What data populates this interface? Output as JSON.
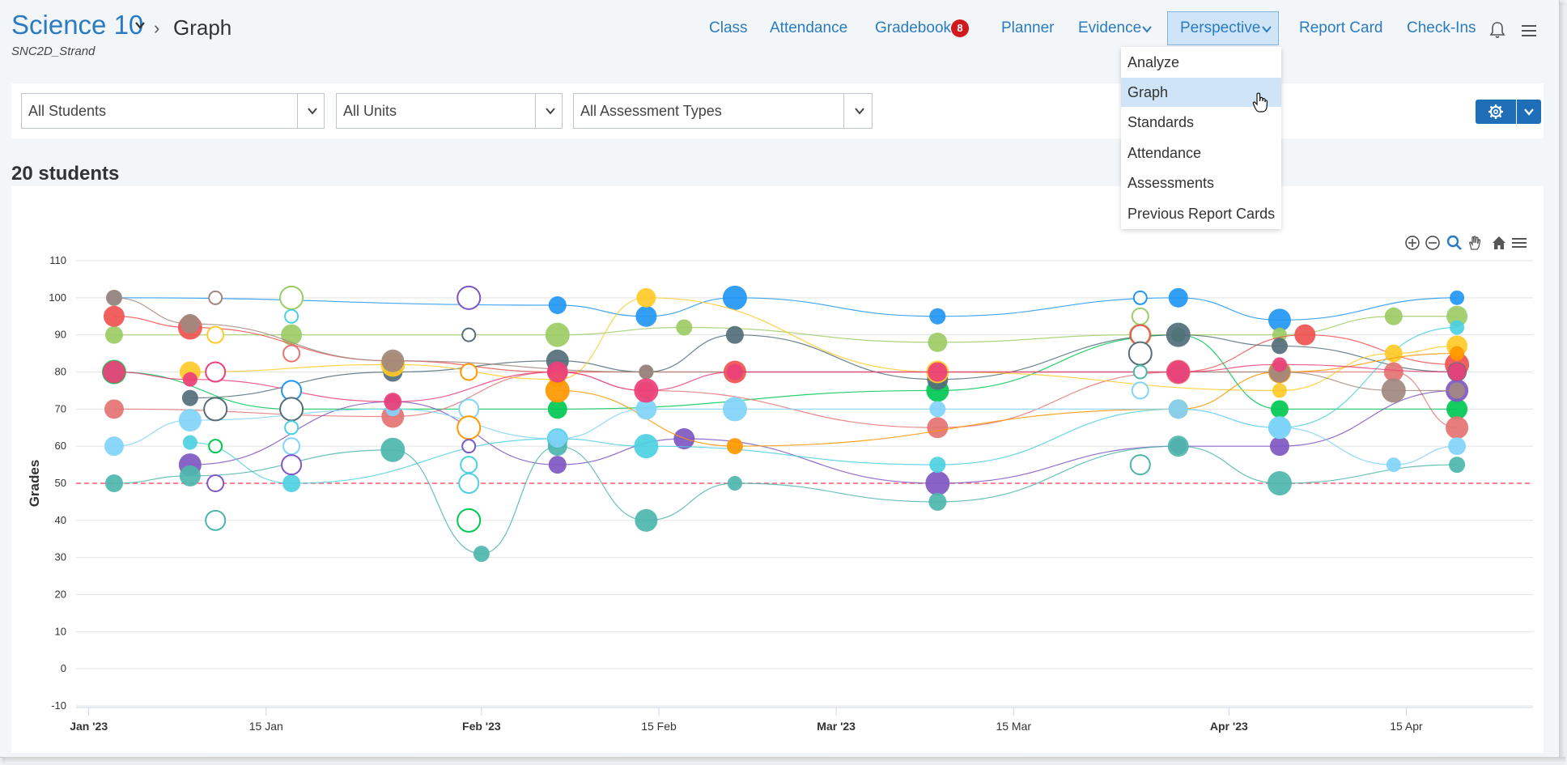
{
  "header": {
    "course_title": "Science 10",
    "breadcrumb_sep": "›",
    "page": "Graph",
    "subtitle": "SNC2D_Strand"
  },
  "nav": {
    "items": [
      {
        "label": "Class"
      },
      {
        "label": "Attendance"
      },
      {
        "label": "Gradebook",
        "badge": "8"
      },
      {
        "label": "Planner"
      },
      {
        "label": "Evidence"
      },
      {
        "label": "Perspective"
      },
      {
        "label": "Report Card"
      },
      {
        "label": "Check-Ins"
      }
    ],
    "active": "Perspective"
  },
  "perspective_menu": {
    "items": [
      "Analyze",
      "Graph",
      "Standards",
      "Attendance",
      "Assessments",
      "Previous Report Cards"
    ],
    "selected": "Graph"
  },
  "filters": {
    "students": "All Students",
    "units": "All Units",
    "types": "All Assessment Types"
  },
  "summary": {
    "count_label": "20 students"
  },
  "colors": {
    "accent": "#2a7bc0",
    "badge": "#d2191c",
    "threshold_line": "#ff5a7a"
  },
  "chart_data": {
    "type": "scatter",
    "ylabel": "Grades",
    "ylim": [
      -10,
      110
    ],
    "yticks": [
      110,
      100,
      90,
      80,
      70,
      60,
      50,
      40,
      30,
      20,
      10,
      0,
      -10
    ],
    "x_ticks": [
      {
        "label": "Jan '23",
        "date": "2023-01-01",
        "bold": true
      },
      {
        "label": "15 Jan",
        "date": "2023-01-15",
        "bold": false
      },
      {
        "label": "Feb '23",
        "date": "2023-02-01",
        "bold": true
      },
      {
        "label": "15 Feb",
        "date": "2023-02-15",
        "bold": false
      },
      {
        "label": "Mar '23",
        "date": "2023-03-01",
        "bold": true
      },
      {
        "label": "15 Mar",
        "date": "2023-03-15",
        "bold": false
      },
      {
        "label": "Apr '23",
        "date": "2023-04-01",
        "bold": true
      },
      {
        "label": "15 Apr",
        "date": "2023-04-15",
        "bold": false
      }
    ],
    "xlim": [
      "2022-12-31",
      "2023-04-25"
    ],
    "threshold": 50,
    "grid": true,
    "series": [
      {
        "color": "#2196f3",
        "points": [
          [
            "2023-01-03",
            100
          ],
          [
            "2023-02-07",
            98
          ],
          [
            "2023-02-14",
            95
          ],
          [
            "2023-02-21",
            100
          ],
          [
            "2023-03-09",
            95
          ],
          [
            "2023-03-28",
            100
          ],
          [
            "2023-04-05",
            94
          ],
          [
            "2023-04-19",
            100
          ]
        ]
      },
      {
        "color": "#9ccc65",
        "points": [
          [
            "2023-01-03",
            90
          ],
          [
            "2023-01-17",
            90
          ],
          [
            "2023-02-07",
            90
          ],
          [
            "2023-02-17",
            92
          ],
          [
            "2023-03-09",
            88
          ],
          [
            "2023-03-25",
            90
          ],
          [
            "2023-04-05",
            90
          ],
          [
            "2023-04-14",
            95
          ],
          [
            "2023-04-19",
            95
          ]
        ]
      },
      {
        "color": "#ef5350",
        "points": [
          [
            "2023-01-03",
            95
          ],
          [
            "2023-01-09",
            92
          ],
          [
            "2023-01-25",
            83
          ],
          [
            "2023-02-07",
            80
          ],
          [
            "2023-02-21",
            80
          ],
          [
            "2023-03-09",
            80
          ],
          [
            "2023-03-28",
            80
          ],
          [
            "2023-04-07",
            90
          ],
          [
            "2023-04-19",
            82
          ]
        ]
      },
      {
        "color": "#00c853",
        "points": [
          [
            "2023-01-03",
            80
          ],
          [
            "2023-01-17",
            70
          ],
          [
            "2023-02-07",
            70
          ],
          [
            "2023-03-09",
            75
          ],
          [
            "2023-03-28",
            90
          ],
          [
            "2023-04-05",
            70
          ],
          [
            "2023-04-19",
            70
          ]
        ]
      },
      {
        "color": "#546e7a",
        "points": [
          [
            "2023-01-09",
            73
          ],
          [
            "2023-01-25",
            80
          ],
          [
            "2023-02-07",
            83
          ],
          [
            "2023-02-14",
            80
          ],
          [
            "2023-02-21",
            90
          ],
          [
            "2023-03-09",
            78
          ],
          [
            "2023-03-28",
            90
          ],
          [
            "2023-04-05",
            87
          ],
          [
            "2023-04-19",
            80
          ]
        ]
      },
      {
        "color": "#e57373",
        "points": [
          [
            "2023-01-03",
            70
          ],
          [
            "2023-01-25",
            68
          ],
          [
            "2023-02-07",
            80
          ],
          [
            "2023-02-14",
            75
          ],
          [
            "2023-03-09",
            65
          ],
          [
            "2023-03-28",
            80
          ],
          [
            "2023-04-05",
            80
          ],
          [
            "2023-04-14",
            80
          ],
          [
            "2023-04-19",
            65
          ]
        ]
      },
      {
        "color": "#7e57c2",
        "points": [
          [
            "2023-01-09",
            55
          ],
          [
            "2023-01-25",
            72
          ],
          [
            "2023-02-07",
            55
          ],
          [
            "2023-02-17",
            62
          ],
          [
            "2023-03-09",
            50
          ],
          [
            "2023-03-28",
            60
          ],
          [
            "2023-04-05",
            60
          ],
          [
            "2023-04-19",
            75
          ]
        ]
      },
      {
        "color": "#4dd0e1",
        "points": [
          [
            "2023-01-09",
            61
          ],
          [
            "2023-01-17",
            50
          ],
          [
            "2023-02-07",
            62
          ],
          [
            "2023-02-14",
            60
          ],
          [
            "2023-03-09",
            55
          ],
          [
            "2023-03-28",
            70
          ],
          [
            "2023-04-05",
            65
          ],
          [
            "2023-04-19",
            92
          ]
        ]
      },
      {
        "color": "#4db6ac",
        "points": [
          [
            "2023-01-03",
            50
          ],
          [
            "2023-01-09",
            52
          ],
          [
            "2023-01-25",
            59
          ],
          [
            "2023-02-01",
            31
          ],
          [
            "2023-02-07",
            60
          ],
          [
            "2023-02-14",
            40
          ],
          [
            "2023-02-21",
            50
          ],
          [
            "2023-03-09",
            45
          ],
          [
            "2023-03-28",
            60
          ],
          [
            "2023-04-05",
            50
          ],
          [
            "2023-04-19",
            55
          ]
        ]
      },
      {
        "color": "#ffca28",
        "points": [
          [
            "2023-01-09",
            80
          ],
          [
            "2023-01-25",
            82
          ],
          [
            "2023-02-07",
            78
          ],
          [
            "2023-02-14",
            100
          ],
          [
            "2023-03-09",
            80
          ],
          [
            "2023-04-05",
            75
          ],
          [
            "2023-04-14",
            85
          ],
          [
            "2023-04-19",
            87
          ]
        ]
      },
      {
        "color": "#ff9800",
        "points": [
          [
            "2023-02-07",
            75
          ],
          [
            "2023-02-21",
            60
          ],
          [
            "2023-03-28",
            70
          ],
          [
            "2023-04-05",
            80
          ],
          [
            "2023-04-19",
            85
          ]
        ]
      },
      {
        "color": "#a1887f",
        "points": [
          [
            "2023-01-03",
            100
          ],
          [
            "2023-01-09",
            93
          ],
          [
            "2023-01-25",
            83
          ],
          [
            "2023-02-14",
            80
          ],
          [
            "2023-03-28",
            80
          ],
          [
            "2023-04-05",
            80
          ],
          [
            "2023-04-14",
            75
          ],
          [
            "2023-04-19",
            75
          ]
        ]
      },
      {
        "color": "#81d4fa",
        "points": [
          [
            "2023-01-03",
            60
          ],
          [
            "2023-01-09",
            67
          ],
          [
            "2023-01-25",
            70
          ],
          [
            "2023-02-07",
            62
          ],
          [
            "2023-02-14",
            70
          ],
          [
            "2023-02-21",
            70
          ],
          [
            "2023-03-09",
            70
          ],
          [
            "2023-03-28",
            70
          ],
          [
            "2023-04-05",
            65
          ],
          [
            "2023-04-14",
            55
          ],
          [
            "2023-04-19",
            60
          ]
        ]
      },
      {
        "color": "#ec407a",
        "points": [
          [
            "2023-01-03",
            80
          ],
          [
            "2023-01-09",
            78
          ],
          [
            "2023-01-25",
            72
          ],
          [
            "2023-02-07",
            80
          ],
          [
            "2023-02-14",
            75
          ],
          [
            "2023-02-21",
            80
          ],
          [
            "2023-03-09",
            80
          ],
          [
            "2023-03-28",
            80
          ],
          [
            "2023-04-05",
            82
          ],
          [
            "2023-04-19",
            80
          ]
        ]
      }
    ],
    "hollow_points": [
      [
        "2023-01-11",
        100,
        "#a1887f"
      ],
      [
        "2023-01-11",
        90,
        "#ffca28"
      ],
      [
        "2023-01-11",
        80,
        "#ec407a"
      ],
      [
        "2023-01-11",
        70,
        "#546e7a"
      ],
      [
        "2023-01-11",
        60,
        "#00c853"
      ],
      [
        "2023-01-11",
        50,
        "#7e57c2"
      ],
      [
        "2023-01-11",
        40,
        "#4db6ac"
      ],
      [
        "2023-01-17",
        100,
        "#9ccc65"
      ],
      [
        "2023-01-17",
        95,
        "#4dd0e1"
      ],
      [
        "2023-01-17",
        85,
        "#e57373"
      ],
      [
        "2023-01-17",
        75,
        "#2196f3"
      ],
      [
        "2023-01-17",
        70,
        "#546e7a"
      ],
      [
        "2023-01-17",
        65,
        "#4dd0e1"
      ],
      [
        "2023-01-17",
        60,
        "#81d4fa"
      ],
      [
        "2023-01-17",
        55,
        "#7e57c2"
      ],
      [
        "2023-01-31",
        100,
        "#7e57c2"
      ],
      [
        "2023-01-31",
        90,
        "#546e7a"
      ],
      [
        "2023-01-31",
        80,
        "#ff9800"
      ],
      [
        "2023-01-31",
        70,
        "#81d4fa"
      ],
      [
        "2023-01-31",
        65,
        "#ff9800"
      ],
      [
        "2023-01-31",
        60,
        "#7e57c2"
      ],
      [
        "2023-01-31",
        55,
        "#4dd0e1"
      ],
      [
        "2023-01-31",
        50,
        "#4dd0e1"
      ],
      [
        "2023-01-31",
        40,
        "#00c853"
      ],
      [
        "2023-03-25",
        100,
        "#2196f3"
      ],
      [
        "2023-03-25",
        95,
        "#9ccc65"
      ],
      [
        "2023-03-25",
        90,
        "#ef5350"
      ],
      [
        "2023-03-25",
        85,
        "#546e7a"
      ],
      [
        "2023-03-25",
        80,
        "#4db6ac"
      ],
      [
        "2023-03-25",
        75,
        "#81d4fa"
      ],
      [
        "2023-03-25",
        55,
        "#4db6ac"
      ]
    ]
  }
}
